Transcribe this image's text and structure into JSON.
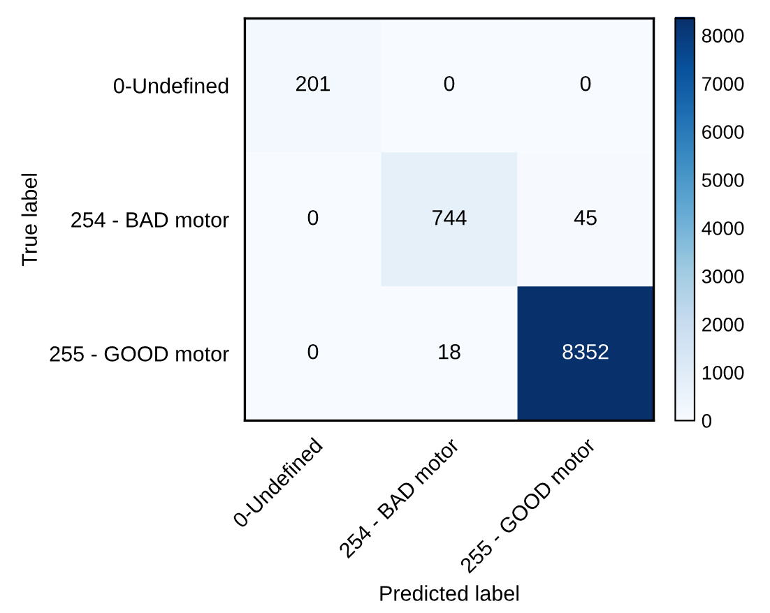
{
  "chart_data": {
    "type": "heatmap",
    "xlabel": "Predicted label",
    "ylabel": "True label",
    "categories": [
      "0-Undefined",
      "254 - BAD motor",
      "255 - GOOD motor"
    ],
    "y_categories": [
      "0-Undefined",
      "254 - BAD motor",
      "255 - GOOD motor"
    ],
    "cells": [
      [
        201,
        0,
        0
      ],
      [
        0,
        744,
        45
      ],
      [
        0,
        18,
        8352
      ]
    ],
    "clim": [
      0,
      8352
    ],
    "cticks": [
      0,
      1000,
      2000,
      3000,
      4000,
      5000,
      6000,
      7000,
      8000
    ],
    "data_labels": true
  }
}
